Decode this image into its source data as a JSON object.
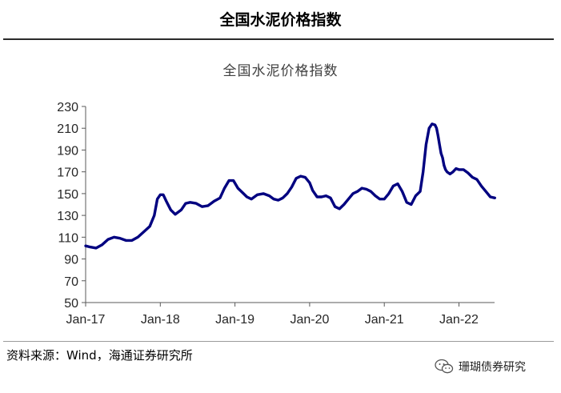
{
  "header": {
    "title": "全国水泥价格指数"
  },
  "source": {
    "text": "资料来源：Wind，海通证券研究所"
  },
  "watermark": {
    "text": "珊瑚债券研究",
    "icon": "wechat-icon"
  },
  "colors": {
    "line": "#000080",
    "axis": "#595959",
    "tick_text": "#262626"
  },
  "chart_data": {
    "type": "line",
    "title": "全国水泥价格指数",
    "xlabel": "",
    "ylabel": "",
    "ylim": [
      50,
      230
    ],
    "y_ticks": [
      50,
      70,
      90,
      110,
      130,
      150,
      170,
      190,
      210,
      230
    ],
    "x_ticks": [
      {
        "label": "Jan-17",
        "x": 2017.0
      },
      {
        "label": "Jan-18",
        "x": 2018.0
      },
      {
        "label": "Jan-19",
        "x": 2019.0
      },
      {
        "label": "Jan-20",
        "x": 2020.0
      },
      {
        "label": "Jan-21",
        "x": 2021.0
      },
      {
        "label": "Jan-22",
        "x": 2022.0
      }
    ],
    "xlim": [
      2017.0,
      2022.5
    ],
    "grid": false,
    "legend": "none",
    "series": [
      {
        "x": [
          2017.0,
          2017.06,
          2017.14,
          2017.22,
          2017.3,
          2017.38,
          2017.46,
          2017.54,
          2017.62,
          2017.7,
          2017.78,
          2017.86,
          2017.92,
          2017.96,
          2018.0,
          2018.04,
          2018.08,
          2018.14,
          2018.2,
          2018.28,
          2018.34,
          2018.4,
          2018.48,
          2018.56,
          2018.64,
          2018.72,
          2018.8,
          2018.86,
          2018.92,
          2018.98,
          2019.04,
          2019.1,
          2019.16,
          2019.22,
          2019.3,
          2019.38,
          2019.46,
          2019.52,
          2019.58,
          2019.64,
          2019.7,
          2019.76,
          2019.82,
          2019.88,
          2019.94,
          2020.0,
          2020.04,
          2020.1,
          2020.16,
          2020.22,
          2020.28,
          2020.34,
          2020.4,
          2020.46,
          2020.52,
          2020.58,
          2020.64,
          2020.7,
          2020.76,
          2020.82,
          2020.88,
          2020.94,
          2021.0,
          2021.06,
          2021.12,
          2021.18,
          2021.24,
          2021.3,
          2021.36,
          2021.42,
          2021.48,
          2021.52,
          2021.56,
          2021.6,
          2021.64,
          2021.68,
          2021.7,
          2021.72,
          2021.74,
          2021.76,
          2021.78,
          2021.8,
          2021.82,
          2021.84,
          2021.88,
          2021.92,
          2021.96,
          2022.0,
          2022.06,
          2022.12,
          2022.18,
          2022.24,
          2022.3,
          2022.36,
          2022.42,
          2022.48
        ],
        "values": [
          102,
          101,
          100,
          103,
          108,
          110,
          109,
          107,
          107,
          110,
          115,
          120,
          130,
          145,
          149,
          149,
          143,
          135,
          131,
          135,
          141,
          142,
          141,
          138,
          139,
          143,
          146,
          155,
          162,
          162,
          155,
          151,
          147,
          145,
          149,
          150,
          148,
          145,
          144,
          146,
          150,
          156,
          164,
          166,
          165,
          160,
          153,
          147,
          147,
          148,
          146,
          138,
          136,
          140,
          145,
          150,
          152,
          155,
          154,
          152,
          148,
          145,
          145,
          150,
          157,
          159,
          152,
          142,
          140,
          148,
          152,
          170,
          195,
          210,
          214,
          213,
          210,
          203,
          195,
          187,
          183,
          176,
          172,
          170,
          168,
          170,
          173,
          172,
          172,
          169,
          165,
          163,
          157,
          152,
          147,
          146
        ]
      }
    ]
  }
}
